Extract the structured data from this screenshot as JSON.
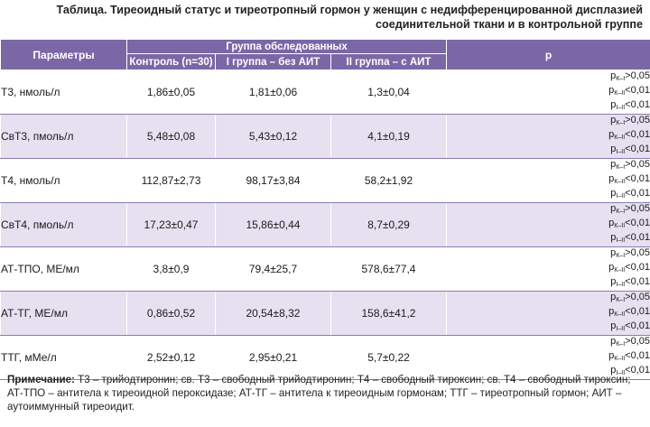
{
  "caption": {
    "line1": "Таблица. Тиреоидный статус и тиреотропный гормон у женщин с недифференцированной дисплазией",
    "line2": "соединительной ткани и в контрольной группе"
  },
  "headers": {
    "params": "Параметры",
    "group": "Группа обследованных",
    "control": "Контроль (n=30)",
    "group1": "I группа – без АИТ",
    "group2": "II группа – с АИТ",
    "p": "p"
  },
  "rows": [
    {
      "param": "Т3, нмоль/л",
      "control": "1,86±0,05",
      "g1": "1,81±0,06",
      "g2": "1,3±0,04",
      "p": [
        {
          "sym": "p",
          "sub": "К–I",
          "val": ">0,05"
        },
        {
          "sym": "p",
          "sub": "К–II",
          "val": "<0,01"
        },
        {
          "sym": "p",
          "sub": "I–II",
          "val": "<0,01"
        }
      ]
    },
    {
      "param": "СвТ3, пмоль/л",
      "control": "5,48±0,08",
      "g1": "5,43±0,12",
      "g2": "4,1±0,19",
      "p": [
        {
          "sym": "p",
          "sub": "К–I",
          "val": ">0,05"
        },
        {
          "sym": "p",
          "sub": "К–II",
          "val": "<0,01"
        },
        {
          "sym": "p",
          "sub": "I–II",
          "val": "<0,01"
        }
      ]
    },
    {
      "param": "Т4, нмоль/л",
      "control": "112,87±2,73",
      "g1": "98,17±3,84",
      "g2": "58,2±1,92",
      "p": [
        {
          "sym": "p",
          "sub": "К–I",
          "val": ">0,05"
        },
        {
          "sym": "p",
          "sub": "К–II",
          "val": "<0,01"
        },
        {
          "sym": "p",
          "sub": "I–II",
          "val": "<0,01"
        }
      ]
    },
    {
      "param": "СвТ4, пмоль/л",
      "control": "17,23±0,47",
      "g1": "15,86±0,44",
      "g2": "8,7±0,29",
      "p": [
        {
          "sym": "p",
          "sub": "К–I",
          "val": ">0,05"
        },
        {
          "sym": "p",
          "sub": "К–II",
          "val": "<0,01"
        },
        {
          "sym": "p",
          "sub": "I–II",
          "val": "<0,01"
        }
      ]
    },
    {
      "param": "АТ-ТПО, МЕ/мл",
      "control": "3,8±0,9",
      "g1": "79,4±25,7",
      "g2": "578,6±77,4",
      "p": [
        {
          "sym": "p",
          "sub": "К–I",
          "val": ">0,05"
        },
        {
          "sym": "p",
          "sub": "К–II",
          "val": "<0,01"
        },
        {
          "sym": "p",
          "sub": "I–II",
          "val": "<0,01"
        }
      ]
    },
    {
      "param": "АТ-ТГ, МЕ/мл",
      "control": "0,86±0,52",
      "g1": "20,54±8,32",
      "g2": "158,6±41,2",
      "p": [
        {
          "sym": "p",
          "sub": "К–I",
          "val": ">0,05"
        },
        {
          "sym": "p",
          "sub": "К–II",
          "val": "<0,01"
        },
        {
          "sym": "p",
          "sub": "I–II",
          "val": "<0,01"
        }
      ]
    },
    {
      "param": "ТТГ, мМе/л",
      "control": "2,52±0,12",
      "g1": "2,95±0,21",
      "g2": "5,7±0,22",
      "p": [
        {
          "sym": "p",
          "sub": "К–I",
          "val": ">0,05"
        },
        {
          "sym": "p",
          "sub": "К–II",
          "val": "<0,01"
        },
        {
          "sym": "p",
          "sub": "I–II",
          "val": "<0,01"
        }
      ]
    }
  ],
  "note": {
    "label": "Примечание:",
    "text": "Т3 – трийодтиронин; св. Т3 – свободный трийодтиронин; Т4 – свободный тироксин; св. Т4 – свободный тироксин; АТ-ТПО – антитела к тиреоидной пероксидазе; АТ-ТГ – антитела к тиреоидным гормонам; ТТГ – тиреотропный гормон; АИТ – аутоиммунный тиреоидит."
  }
}
